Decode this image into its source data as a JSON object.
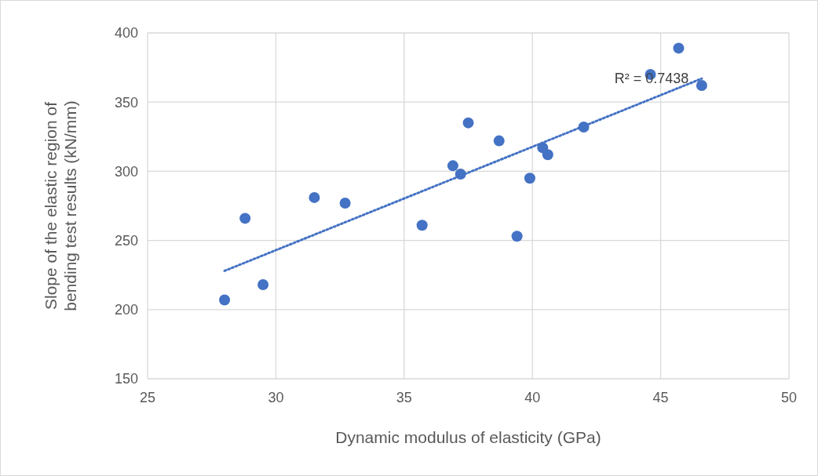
{
  "chart_data": {
    "type": "scatter",
    "xlabel": "Dynamic modulus of elasticity (GPa)",
    "ylabel": "Slope of the elastic region of bending test results (kN/mm)",
    "xlim": [
      25,
      50
    ],
    "xticks": [
      25,
      30,
      35,
      40,
      45,
      50
    ],
    "ylim": [
      150,
      400
    ],
    "yticks": [
      150,
      200,
      250,
      300,
      350,
      400
    ],
    "grid": true,
    "series": [
      {
        "color": "#4472c4",
        "marker": "circle",
        "x": [
          28.0,
          28.8,
          29.5,
          31.5,
          32.7,
          35.7,
          36.9,
          37.2,
          37.5,
          38.7,
          39.4,
          39.9,
          40.4,
          40.6,
          42.0,
          44.6,
          45.7,
          46.6
        ],
        "values": [
          207,
          266,
          218,
          281,
          277,
          261,
          304,
          298,
          335,
          322,
          253,
          295,
          317,
          312,
          332,
          370,
          389,
          362
        ]
      },
      {
        "type": "line",
        "color": "#4472c4",
        "line_style": "dotted",
        "marker": "none",
        "x": [
          28.0,
          46.6
        ],
        "values": [
          228,
          367
        ]
      }
    ],
    "annotations": [
      "R² = 0.7438"
    ]
  }
}
